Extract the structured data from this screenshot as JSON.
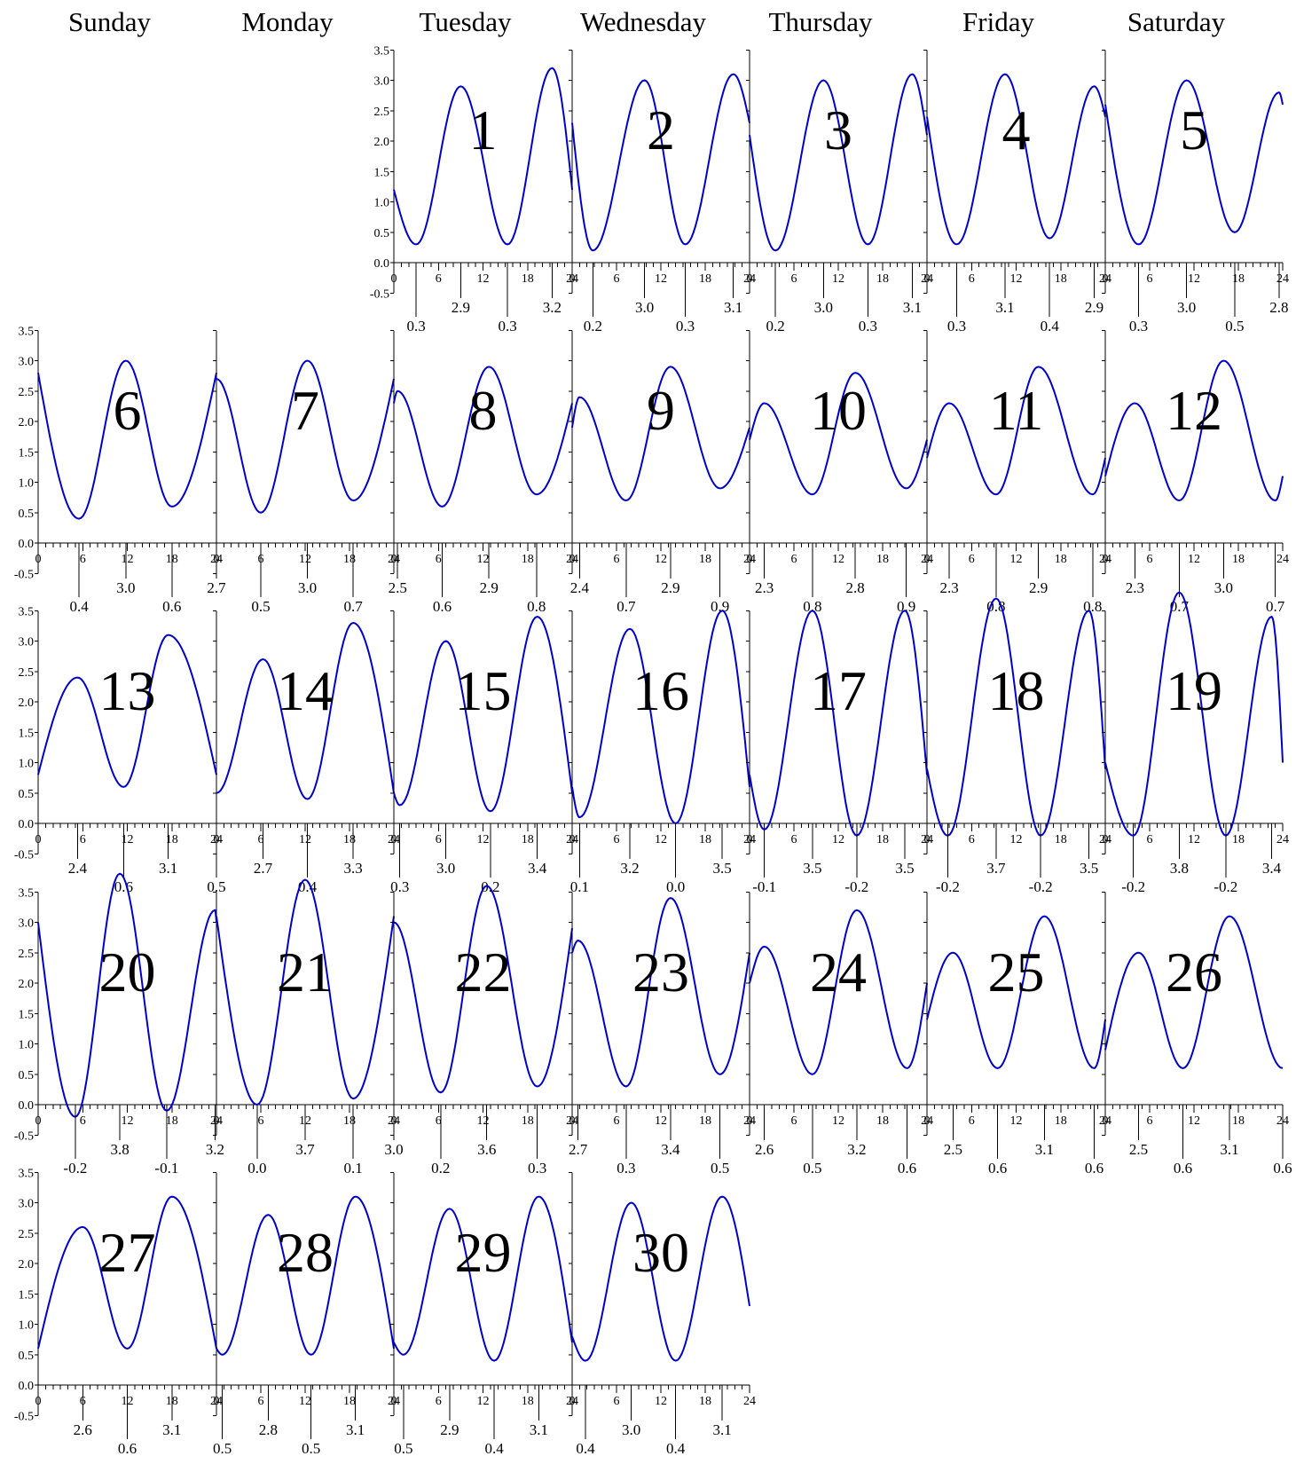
{
  "weekdays": [
    "Sunday",
    "Monday",
    "Tuesday",
    "Wednesday",
    "Thursday",
    "Friday",
    "Saturday"
  ],
  "chart_data": {
    "type": "line",
    "layout": "monthly-calendar",
    "first_weekday_index": 2,
    "x_ticks": [
      0,
      6,
      12,
      18,
      24
    ],
    "x_minor_step": 1,
    "y_ticks": [
      "-0.5",
      "0.0",
      "0.5",
      "1.0",
      "1.5",
      "2.0",
      "2.5",
      "3.0",
      "3.5"
    ],
    "xlim": [
      0,
      24
    ],
    "ylim": [
      -0.5,
      3.5
    ],
    "line_color": "#0000cc",
    "days": [
      {
        "day": 1,
        "extremes": [
          {
            "t": 3.0,
            "v": 0.3
          },
          {
            "t": 9.0,
            "v": 2.9
          },
          {
            "t": 15.3,
            "v": 0.3
          },
          {
            "t": 21.3,
            "v": 3.2
          }
        ],
        "start": 1.2
      },
      {
        "day": 2,
        "extremes": [
          {
            "t": 2.8,
            "v": 0.2
          },
          {
            "t": 9.8,
            "v": 3.0
          },
          {
            "t": 15.3,
            "v": 0.3
          },
          {
            "t": 21.8,
            "v": 3.1
          }
        ],
        "start": 2.3
      },
      {
        "day": 3,
        "extremes": [
          {
            "t": 3.5,
            "v": 0.2
          },
          {
            "t": 10.0,
            "v": 3.0
          },
          {
            "t": 16.0,
            "v": 0.3
          },
          {
            "t": 22.0,
            "v": 3.1
          }
        ],
        "start": 2.1
      },
      {
        "day": 4,
        "extremes": [
          {
            "t": 4.0,
            "v": 0.3
          },
          {
            "t": 10.5,
            "v": 3.1
          },
          {
            "t": 16.5,
            "v": 0.4
          },
          {
            "t": 22.5,
            "v": 2.9
          }
        ],
        "start": 2.4
      },
      {
        "day": 5,
        "extremes": [
          {
            "t": 4.5,
            "v": 0.3
          },
          {
            "t": 11.0,
            "v": 3.0
          },
          {
            "t": 17.5,
            "v": 0.5
          },
          {
            "t": 23.5,
            "v": 2.8
          }
        ],
        "start": 2.6
      },
      {
        "day": 6,
        "extremes": [
          {
            "t": 5.5,
            "v": 0.4
          },
          {
            "t": 11.8,
            "v": 3.0
          },
          {
            "t": 18.0,
            "v": 0.6
          }
        ],
        "start": 2.8
      },
      {
        "day": 7,
        "extremes": [
          {
            "t": 0.0,
            "v": 2.7
          },
          {
            "t": 6.0,
            "v": 0.5
          },
          {
            "t": 12.3,
            "v": 3.0
          },
          {
            "t": 18.5,
            "v": 0.7
          }
        ],
        "start": 2.7
      },
      {
        "day": 8,
        "extremes": [
          {
            "t": 0.5,
            "v": 2.5
          },
          {
            "t": 6.5,
            "v": 0.6
          },
          {
            "t": 12.8,
            "v": 2.9
          },
          {
            "t": 19.2,
            "v": 0.8
          }
        ],
        "start": 2.3
      },
      {
        "day": 9,
        "extremes": [
          {
            "t": 1.0,
            "v": 2.4
          },
          {
            "t": 7.3,
            "v": 0.7
          },
          {
            "t": 13.3,
            "v": 2.9
          },
          {
            "t": 20.0,
            "v": 0.9
          }
        ],
        "start": 1.9
      },
      {
        "day": 10,
        "extremes": [
          {
            "t": 2.0,
            "v": 2.3
          },
          {
            "t": 8.5,
            "v": 0.8
          },
          {
            "t": 14.3,
            "v": 2.8
          },
          {
            "t": 21.2,
            "v": 0.9
          }
        ],
        "start": 1.7
      },
      {
        "day": 11,
        "extremes": [
          {
            "t": 3.0,
            "v": 2.3
          },
          {
            "t": 9.3,
            "v": 0.8
          },
          {
            "t": 15.0,
            "v": 2.9
          },
          {
            "t": 22.3,
            "v": 0.8
          }
        ],
        "start": 1.4
      },
      {
        "day": 12,
        "extremes": [
          {
            "t": 4.0,
            "v": 2.3
          },
          {
            "t": 10.0,
            "v": 0.7
          },
          {
            "t": 16.0,
            "v": 3.0
          },
          {
            "t": 23.0,
            "v": 0.7
          }
        ],
        "start": 1.1
      },
      {
        "day": 13,
        "extremes": [
          {
            "t": 5.3,
            "v": 2.4
          },
          {
            "t": 11.5,
            "v": 0.6
          },
          {
            "t": 17.5,
            "v": 3.1
          }
        ],
        "start": 0.8
      },
      {
        "day": 14,
        "extremes": [
          {
            "t": 0.0,
            "v": 0.5
          },
          {
            "t": 6.3,
            "v": 2.7
          },
          {
            "t": 12.3,
            "v": 0.4
          },
          {
            "t": 18.5,
            "v": 3.3
          }
        ],
        "start": 0.5
      },
      {
        "day": 15,
        "extremes": [
          {
            "t": 0.8,
            "v": 0.3
          },
          {
            "t": 7.0,
            "v": 3.0
          },
          {
            "t": 13.0,
            "v": 0.2
          },
          {
            "t": 19.3,
            "v": 3.4
          }
        ],
        "start": 0.5
      },
      {
        "day": 16,
        "extremes": [
          {
            "t": 1.0,
            "v": 0.1
          },
          {
            "t": 7.8,
            "v": 3.2
          },
          {
            "t": 14.0,
            "v": -0.0
          },
          {
            "t": 20.3,
            "v": 3.5
          }
        ],
        "start": 0.6
      },
      {
        "day": 17,
        "extremes": [
          {
            "t": 2.0,
            "v": -0.1
          },
          {
            "t": 8.5,
            "v": 3.5
          },
          {
            "t": 14.5,
            "v": -0.2
          },
          {
            "t": 21.0,
            "v": 3.5
          }
        ],
        "start": 0.8
      },
      {
        "day": 18,
        "extremes": [
          {
            "t": 2.8,
            "v": -0.2
          },
          {
            "t": 9.3,
            "v": 3.7
          },
          {
            "t": 15.3,
            "v": -0.2
          },
          {
            "t": 21.8,
            "v": 3.5
          }
        ],
        "start": 0.9
      },
      {
        "day": 19,
        "extremes": [
          {
            "t": 3.8,
            "v": -0.2
          },
          {
            "t": 10.0,
            "v": 3.8
          },
          {
            "t": 16.3,
            "v": -0.2
          },
          {
            "t": 22.5,
            "v": 3.4
          }
        ],
        "start": 1.0
      },
      {
        "day": 20,
        "extremes": [
          {
            "t": 5.0,
            "v": -0.2
          },
          {
            "t": 11.0,
            "v": 3.8
          },
          {
            "t": 17.3,
            "v": -0.1
          },
          {
            "t": 23.8,
            "v": 3.2
          }
        ],
        "start": 3.0
      },
      {
        "day": 21,
        "extremes": [
          {
            "t": 5.5,
            "v": -0.0
          },
          {
            "t": 12.0,
            "v": 3.7
          },
          {
            "t": 18.5,
            "v": 0.1
          }
        ],
        "start": 3.1
      },
      {
        "day": 22,
        "extremes": [
          {
            "t": 0.0,
            "v": 3.0
          },
          {
            "t": 6.3,
            "v": 0.2
          },
          {
            "t": 12.5,
            "v": 3.6
          },
          {
            "t": 19.3,
            "v": 0.3
          }
        ],
        "start": 2.9
      },
      {
        "day": 23,
        "extremes": [
          {
            "t": 0.8,
            "v": 2.7
          },
          {
            "t": 7.3,
            "v": 0.3
          },
          {
            "t": 13.3,
            "v": 3.4
          },
          {
            "t": 20.0,
            "v": 0.5
          }
        ],
        "start": 2.5
      },
      {
        "day": 24,
        "extremes": [
          {
            "t": 2.0,
            "v": 2.6
          },
          {
            "t": 8.5,
            "v": 0.5
          },
          {
            "t": 14.5,
            "v": 3.2
          },
          {
            "t": 21.3,
            "v": 0.6
          }
        ],
        "start": 2.0
      },
      {
        "day": 25,
        "extremes": [
          {
            "t": 3.5,
            "v": 2.5
          },
          {
            "t": 9.5,
            "v": 0.6
          },
          {
            "t": 15.8,
            "v": 3.1
          },
          {
            "t": 22.5,
            "v": 0.6
          }
        ],
        "start": 1.4
      },
      {
        "day": 26,
        "extremes": [
          {
            "t": 4.5,
            "v": 2.5
          },
          {
            "t": 10.5,
            "v": 0.6
          },
          {
            "t": 16.8,
            "v": 3.1
          },
          {
            "t": 24.0,
            "v": 0.6
          }
        ],
        "start": 0.9
      },
      {
        "day": 27,
        "extremes": [
          {
            "t": 6.0,
            "v": 2.6
          },
          {
            "t": 12.0,
            "v": 0.6
          },
          {
            "t": 18.0,
            "v": 3.1
          }
        ],
        "start": 0.6
      },
      {
        "day": 28,
        "extremes": [
          {
            "t": 0.8,
            "v": 0.5
          },
          {
            "t": 7.0,
            "v": 2.8
          },
          {
            "t": 12.8,
            "v": 0.5
          },
          {
            "t": 18.8,
            "v": 3.1
          }
        ],
        "start": 0.6
      },
      {
        "day": 29,
        "extremes": [
          {
            "t": 1.3,
            "v": 0.5
          },
          {
            "t": 7.5,
            "v": 2.9
          },
          {
            "t": 13.5,
            "v": 0.4
          },
          {
            "t": 19.5,
            "v": 3.1
          }
        ],
        "start": 0.7
      },
      {
        "day": 30,
        "extremes": [
          {
            "t": 1.8,
            "v": 0.4
          },
          {
            "t": 8.0,
            "v": 3.0
          },
          {
            "t": 14.0,
            "v": 0.4
          },
          {
            "t": 20.3,
            "v": 3.1
          }
        ],
        "start": 0.8,
        "end": 1.3
      }
    ]
  }
}
